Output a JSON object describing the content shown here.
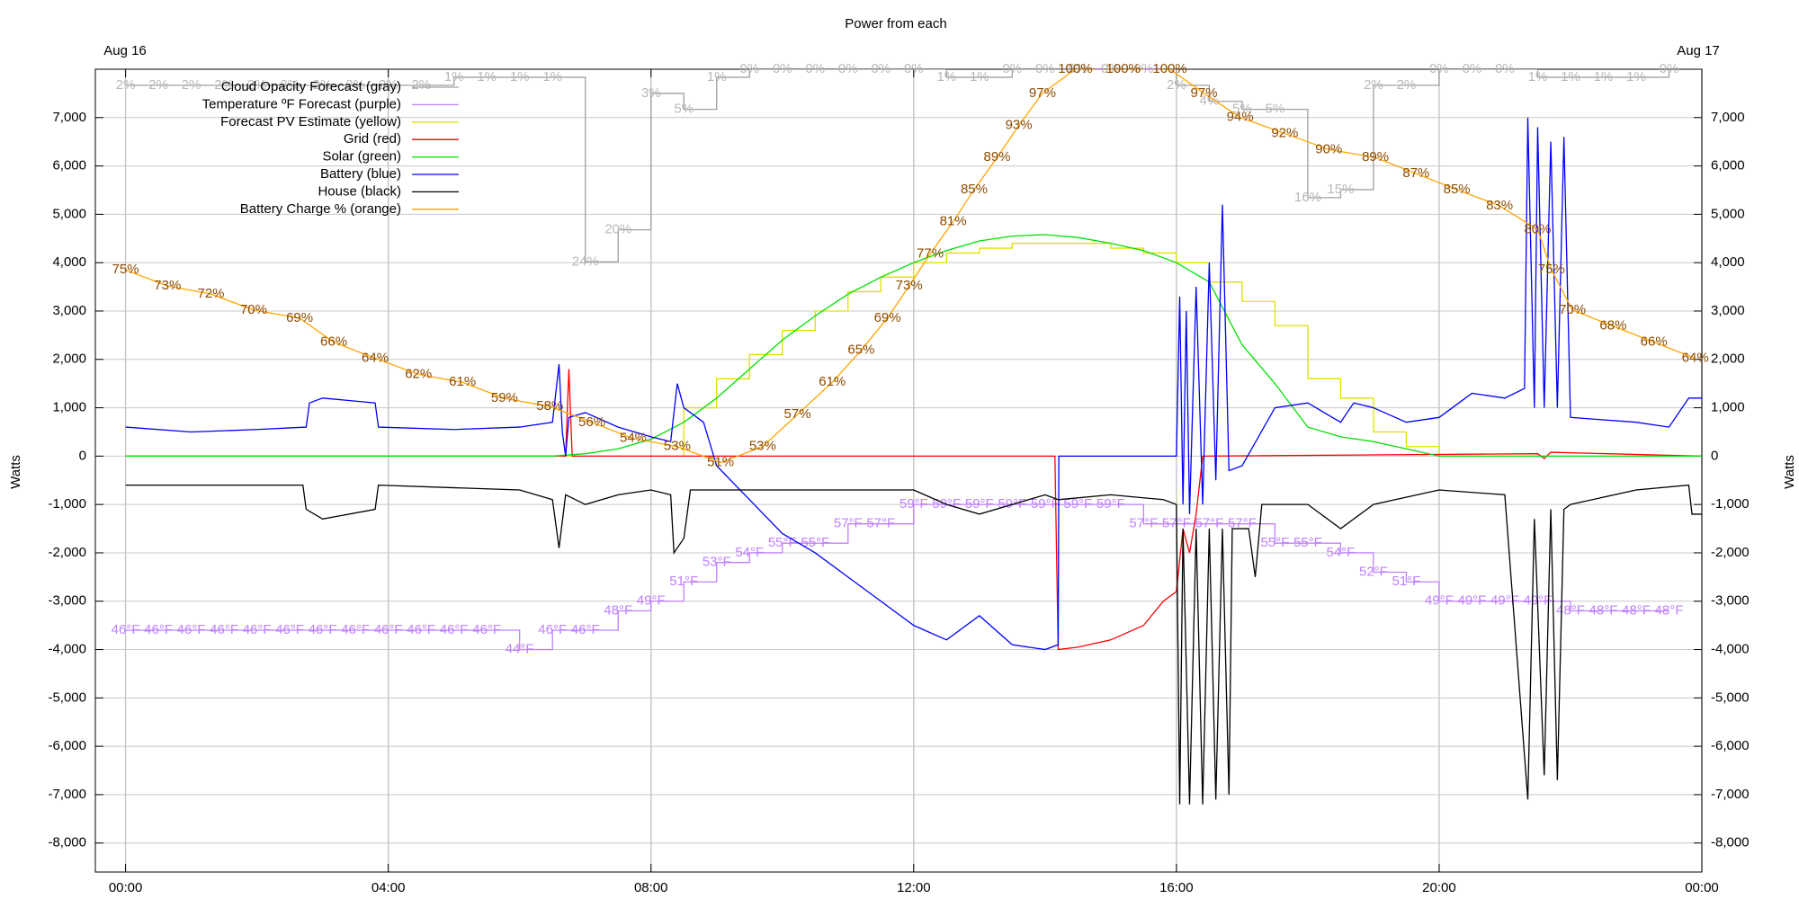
{
  "chart_data": {
    "type": "line",
    "title": "Power from each",
    "annotations": [
      "Aug 16",
      "Aug 17"
    ],
    "ylabel": "Watts",
    "xlim": [
      -0.46,
      24
    ],
    "ylim": [
      -8600,
      8000
    ],
    "y2lim": [
      0,
      100
    ],
    "y3lim": [
      21,
      104
    ],
    "y4lim": [
      100,
      0
    ],
    "grid": true,
    "legend": "top-left",
    "xticks": [
      {
        "value": 0,
        "label": "00:00"
      },
      {
        "value": 4,
        "label": "04:00"
      },
      {
        "value": 8,
        "label": "08:00"
      },
      {
        "value": 12,
        "label": "12:00"
      },
      {
        "value": 16,
        "label": "16:00"
      },
      {
        "value": 20,
        "label": "20:00"
      },
      {
        "value": 24,
        "label": "00:00"
      }
    ],
    "yticks": [
      {
        "value": -8000,
        "label": "-8,000"
      },
      {
        "value": -7000,
        "label": "-7,000"
      },
      {
        "value": -6000,
        "label": "-6,000"
      },
      {
        "value": -5000,
        "label": "-5,000"
      },
      {
        "value": -4000,
        "label": "-4,000"
      },
      {
        "value": -3000,
        "label": "-3,000"
      },
      {
        "value": -2000,
        "label": "-2,000"
      },
      {
        "value": -1000,
        "label": "-1,000"
      },
      0,
      {
        "value": 1000,
        "label": "1,000"
      },
      {
        "value": 2000,
        "label": "2,000"
      },
      {
        "value": 3000,
        "label": "3,000"
      },
      {
        "value": 4000,
        "label": "4,000"
      },
      {
        "value": 5000,
        "label": "5,000"
      },
      {
        "value": 6000,
        "label": "6,000"
      },
      {
        "value": 7000,
        "label": "7,000"
      }
    ],
    "series": [
      {
        "name": "Cloud Opacity Forecast (gray)",
        "color": "#a0a0a0",
        "label_color": "#b8b8b8",
        "axis": "y4",
        "step": true,
        "x": [
          0,
          0.5,
          1,
          1.5,
          2,
          2.5,
          3,
          3.5,
          4,
          4.5,
          5,
          5.5,
          6,
          6.5,
          7,
          7.5,
          8,
          8.5,
          9,
          9.5,
          10,
          10.5,
          11,
          11.5,
          12,
          12.5,
          13,
          13.5,
          14,
          14.5,
          15,
          15.5,
          16,
          16.5,
          17,
          17.5,
          18,
          18.5,
          19,
          19.5,
          20,
          20.5,
          21,
          21.5,
          22,
          22.5,
          23,
          23.5
        ],
        "values": [
          2,
          2,
          2,
          2,
          2,
          2,
          2,
          2,
          2,
          2,
          1,
          1,
          1,
          1,
          24,
          20,
          3,
          5,
          1,
          0,
          0,
          0,
          0,
          0,
          0,
          1,
          1,
          0,
          0,
          0,
          0,
          0,
          2,
          4,
          5,
          5,
          16,
          15,
          2,
          2,
          0,
          0,
          0,
          1,
          1,
          1,
          1,
          0
        ],
        "value_labels": [
          "2%",
          "2%",
          "2%",
          "2%",
          "2%",
          "2%",
          "2%",
          "2%",
          "2%",
          "2%",
          "1%",
          "1%",
          "1%",
          "1%",
          "24%",
          "20%",
          "3%",
          "5%",
          "1%",
          "0%",
          "0%",
          "0%",
          "0%",
          "0%",
          "0%",
          "1%",
          "1%",
          "0%",
          "0%",
          "0%",
          "0%",
          "0%",
          "2%",
          "4%",
          "5%",
          "5%",
          "16%",
          "15%",
          "2%",
          "2%",
          "0%",
          "0%",
          "0%",
          "1%",
          "1%",
          "1%",
          "1%",
          "0%"
        ]
      },
      {
        "name": "Temperature ºF Forecast (purple)",
        "color": "#c080ff",
        "label_color": "#c080ff",
        "axis": "y3",
        "step": true,
        "x": [
          0,
          0.5,
          1,
          1.5,
          2,
          2.5,
          3,
          3.5,
          4,
          4.5,
          5,
          5.5,
          6,
          6.5,
          7,
          7.5,
          8,
          8.5,
          9,
          9.5,
          10,
          10.5,
          11,
          11.5,
          12,
          12.5,
          13,
          13.5,
          14,
          14.5,
          15,
          15.5,
          16,
          16.5,
          17,
          17.5,
          18,
          18.5,
          19,
          19.5,
          20,
          20.5,
          21,
          21.5,
          22,
          22.5,
          23,
          23.5
        ],
        "values": [
          46,
          46,
          46,
          46,
          46,
          46,
          46,
          46,
          46,
          46,
          46,
          46,
          44,
          46,
          46,
          48,
          49,
          51,
          53,
          54,
          55,
          55,
          57,
          57,
          59,
          59,
          59,
          59,
          59,
          59,
          59,
          57,
          57,
          57,
          57,
          55,
          55,
          54,
          52,
          51,
          49,
          49,
          49,
          49,
          48,
          48,
          48,
          48
        ],
        "value_labels": [
          "46°F",
          "46°F",
          "46°F",
          "46°F",
          "46°F",
          "46°F",
          "46°F",
          "46°F",
          "46°F",
          "46°F",
          "46°F",
          "46°F",
          "44°F",
          "46°F",
          "46°F",
          "48°F",
          "49°F",
          "51°F",
          "53°F",
          "54°F",
          "55°F",
          "55°F",
          "57°F",
          "57°F",
          "59°F",
          "59°F",
          "59°F",
          "59°F",
          "59°F",
          "59°F",
          "59°F",
          "57°F",
          "57°F",
          "57°F",
          "57°F",
          "55°F",
          "55°F",
          "54°F",
          "52°F",
          "51°F",
          "49°F",
          "49°F",
          "49°F",
          "49°F",
          "48°F",
          "48°F",
          "48°F",
          "48°F"
        ]
      },
      {
        "name": "Forecast PV Estimate (yellow)",
        "color": "#e0e000",
        "axis": "y",
        "step": true,
        "x": [
          0,
          0.5,
          1,
          1.5,
          2,
          2.5,
          3,
          3.5,
          4,
          4.5,
          5,
          5.5,
          6,
          6.5,
          7,
          7.5,
          8,
          8.5,
          9,
          9.5,
          10,
          10.5,
          11,
          11.5,
          12,
          12.5,
          13,
          13.5,
          14,
          14.5,
          15,
          15.5,
          16,
          16.5,
          17,
          17.5,
          18,
          18.5,
          19,
          19.5,
          20,
          20.5,
          21,
          21.5,
          22,
          22.5,
          23,
          23.5,
          24
        ],
        "values": [
          0,
          0,
          0,
          0,
          0,
          0,
          0,
          0,
          0,
          0,
          0,
          0,
          0,
          0,
          0,
          0,
          0,
          1000,
          1600,
          2100,
          2600,
          3000,
          3400,
          3700,
          4000,
          4200,
          4300,
          4400,
          4400,
          4400,
          4300,
          4200,
          4000,
          3600,
          3200,
          2700,
          1600,
          1200,
          500,
          200,
          0,
          0,
          0,
          0,
          0,
          0,
          0,
          0,
          0
        ]
      },
      {
        "name": "Grid (red)",
        "color": "#ff0000",
        "axis": "y",
        "x": [
          0,
          6.7,
          6.75,
          6.8,
          14.15,
          14.2,
          14.5,
          15,
          15.5,
          15.8,
          16,
          16.1,
          16.2,
          16.3,
          16.4,
          21.5,
          21.6,
          21.7,
          24
        ],
        "values": [
          0,
          0,
          1800,
          0,
          0,
          -4000,
          -3950,
          -3800,
          -3500,
          -3000,
          -2800,
          -1500,
          -2000,
          -1200,
          0,
          50,
          -50,
          80,
          0
        ]
      },
      {
        "name": "Solar (green)",
        "color": "#00e000",
        "axis": "y",
        "x": [
          0,
          0.5,
          1,
          1.5,
          2,
          2.5,
          3,
          3.5,
          4,
          4.5,
          5,
          5.5,
          6,
          6.5,
          7,
          7.5,
          8,
          8.5,
          9,
          9.5,
          10,
          10.5,
          11,
          11.5,
          12,
          12.5,
          13,
          13.5,
          14,
          14.5,
          15,
          15.5,
          16,
          16.5,
          17,
          17.5,
          18,
          18.5,
          19,
          19.5,
          20,
          20.5,
          21,
          21.5,
          22,
          22.5,
          23,
          23.5,
          24
        ],
        "values": [
          0,
          0,
          0,
          0,
          0,
          0,
          0,
          0,
          0,
          0,
          0,
          0,
          0,
          0,
          50,
          150,
          350,
          700,
          1200,
          1800,
          2400,
          2900,
          3350,
          3700,
          4000,
          4250,
          4450,
          4550,
          4580,
          4520,
          4400,
          4250,
          4000,
          3600,
          2300,
          1500,
          600,
          400,
          300,
          150,
          0,
          0,
          0,
          0,
          0,
          0,
          0,
          0,
          0
        ]
      },
      {
        "name": "Battery (blue)",
        "color": "#0000ff",
        "axis": "y",
        "x": [
          0,
          1,
          2,
          2.75,
          2.8,
          3,
          3.8,
          3.85,
          5,
          6,
          6.5,
          6.6,
          6.65,
          6.7,
          6.75,
          7,
          7.5,
          8,
          8.3,
          8.4,
          8.5,
          8.8,
          9,
          9.5,
          10,
          10.5,
          11,
          11.5,
          12,
          12.5,
          13,
          13.5,
          14,
          14.2,
          14.21,
          16,
          16.05,
          16.1,
          16.15,
          16.2,
          16.3,
          16.4,
          16.5,
          16.6,
          16.7,
          16.8,
          17,
          17.5,
          18,
          18.5,
          18.7,
          19,
          19.5,
          20,
          20.5,
          21,
          21.3,
          21.35,
          21.45,
          21.5,
          21.6,
          21.7,
          21.8,
          21.9,
          22,
          22.5,
          23,
          23.5,
          23.8,
          24
        ],
        "values": [
          600,
          500,
          550,
          600,
          1100,
          1200,
          1100,
          600,
          550,
          600,
          700,
          1900,
          500,
          0,
          800,
          900,
          600,
          400,
          300,
          1500,
          1000,
          700,
          -200,
          -900,
          -1600,
          -2000,
          -2500,
          -3000,
          -3500,
          -3800,
          -3300,
          -3900,
          -4000,
          -3900,
          0,
          0,
          3300,
          -1000,
          3000,
          -1200,
          3500,
          -1000,
          4000,
          -500,
          5200,
          -300,
          -200,
          1000,
          1100,
          700,
          1100,
          1000,
          700,
          800,
          1300,
          1200,
          1400,
          7000,
          1000,
          6800,
          1000,
          6500,
          1000,
          6600,
          800,
          750,
          700,
          600,
          1200,
          1200
        ]
      },
      {
        "name": "House (black)",
        "color": "#000000",
        "axis": "y",
        "x": [
          0,
          2.7,
          2.75,
          3,
          3.8,
          3.85,
          6,
          6.5,
          6.6,
          6.7,
          7,
          7.5,
          8,
          8.3,
          8.35,
          8.5,
          8.6,
          12,
          12.5,
          13,
          14,
          14.2,
          15,
          15.8,
          16,
          16.05,
          16.1,
          16.2,
          16.3,
          16.4,
          16.5,
          16.6,
          16.7,
          16.8,
          16.85,
          17.1,
          17.2,
          17.3,
          18,
          18.5,
          19,
          20,
          21,
          21.35,
          21.45,
          21.6,
          21.7,
          21.8,
          21.9,
          22,
          23,
          23.8,
          23.85,
          24
        ],
        "values": [
          -600,
          -600,
          -1100,
          -1300,
          -1100,
          -600,
          -700,
          -900,
          -1900,
          -800,
          -1000,
          -800,
          -700,
          -800,
          -2000,
          -1700,
          -700,
          -700,
          -1000,
          -1200,
          -800,
          -900,
          -800,
          -900,
          -1000,
          -7200,
          -1500,
          -7200,
          -1500,
          -7200,
          -1500,
          -7100,
          -1500,
          -7000,
          -1500,
          -1500,
          -2500,
          -1000,
          -1000,
          -1500,
          -1000,
          -700,
          -800,
          -7100,
          -1300,
          -6600,
          -1100,
          -6700,
          -1100,
          -1000,
          -700,
          -600,
          -1200,
          -1200
        ]
      },
      {
        "name": "Battery Charge % (orange)",
        "color": "#ffa500",
        "label_color": "#8b4a00",
        "axis": "y2",
        "x": [
          0,
          0.64,
          1.3,
          1.95,
          2.65,
          3.17,
          3.8,
          4.46,
          5.13,
          5.77,
          6.46,
          7.1,
          7.73,
          8.4,
          9.06,
          9.7,
          10.23,
          10.76,
          11.2,
          11.6,
          11.93,
          12.25,
          12.6,
          12.92,
          13.27,
          13.6,
          13.96,
          14.46,
          15.19,
          15.9,
          16.42,
          16.97,
          17.65,
          18.32,
          19.03,
          19.65,
          20.27,
          20.92,
          21.5,
          21.71,
          22.03,
          22.65,
          23.27,
          23.9
        ],
        "values": [
          75,
          73,
          72,
          70,
          69,
          66,
          64,
          62,
          61,
          59,
          58,
          56,
          54,
          53,
          51,
          53,
          57,
          61,
          65,
          69,
          73,
          77,
          81,
          85,
          89,
          93,
          97,
          100,
          100,
          100,
          97,
          94,
          92,
          90,
          89,
          87,
          85,
          83,
          80,
          75,
          70,
          68,
          66,
          64
        ],
        "value_labels": [
          "75%",
          "73%",
          "72%",
          "70%",
          "69%",
          "66%",
          "64%",
          "62%",
          "61%",
          "59%",
          "58%",
          "56%",
          "54%",
          "53%",
          "51%",
          "53%",
          "57%",
          "61%",
          "65%",
          "69%",
          "73%",
          "77%",
          "81%",
          "85%",
          "89%",
          "93%",
          "97%",
          "100%",
          "100%",
          "100%",
          "97%",
          "94%",
          "92%",
          "90%",
          "89%",
          "87%",
          "85%",
          "83%",
          "80%",
          "75%",
          "70%",
          "68%",
          "66%",
          "64%"
        ]
      }
    ]
  }
}
